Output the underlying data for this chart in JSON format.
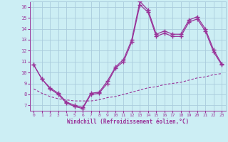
{
  "xlabel": "Windchill (Refroidissement éolien,°C)",
  "x": [
    0,
    1,
    2,
    3,
    4,
    5,
    6,
    7,
    8,
    9,
    10,
    11,
    12,
    13,
    14,
    15,
    16,
    17,
    18,
    19,
    20,
    21,
    22,
    23
  ],
  "line1": [
    10.7,
    9.4,
    8.6,
    8.1,
    7.3,
    7.0,
    6.8,
    8.1,
    8.2,
    9.2,
    10.5,
    11.2,
    13.0,
    16.5,
    15.7,
    13.5,
    13.8,
    13.5,
    13.5,
    14.8,
    15.1,
    14.0,
    12.1,
    10.8
  ],
  "line2": [
    10.7,
    9.4,
    8.5,
    8.0,
    7.2,
    6.9,
    6.7,
    8.0,
    8.1,
    9.0,
    10.4,
    11.0,
    12.8,
    16.2,
    15.5,
    13.3,
    13.6,
    13.3,
    13.3,
    14.6,
    14.9,
    13.8,
    11.9,
    10.7
  ],
  "line3": [
    8.5,
    8.1,
    7.8,
    7.6,
    7.5,
    7.4,
    7.4,
    7.4,
    7.5,
    7.7,
    7.8,
    8.0,
    8.2,
    8.4,
    8.6,
    8.7,
    8.9,
    9.0,
    9.1,
    9.3,
    9.5,
    9.6,
    9.8,
    9.9
  ],
  "line_color": "#993399",
  "bg_color": "#cceef4",
  "grid_color": "#aaccdd",
  "ylim": [
    6.5,
    16.5
  ],
  "xlim": [
    -0.5,
    23.5
  ],
  "yticks": [
    7,
    8,
    9,
    10,
    11,
    12,
    13,
    14,
    15,
    16
  ],
  "xticks": [
    0,
    1,
    2,
    3,
    4,
    5,
    6,
    7,
    8,
    9,
    10,
    11,
    12,
    13,
    14,
    15,
    16,
    17,
    18,
    19,
    20,
    21,
    22,
    23
  ]
}
